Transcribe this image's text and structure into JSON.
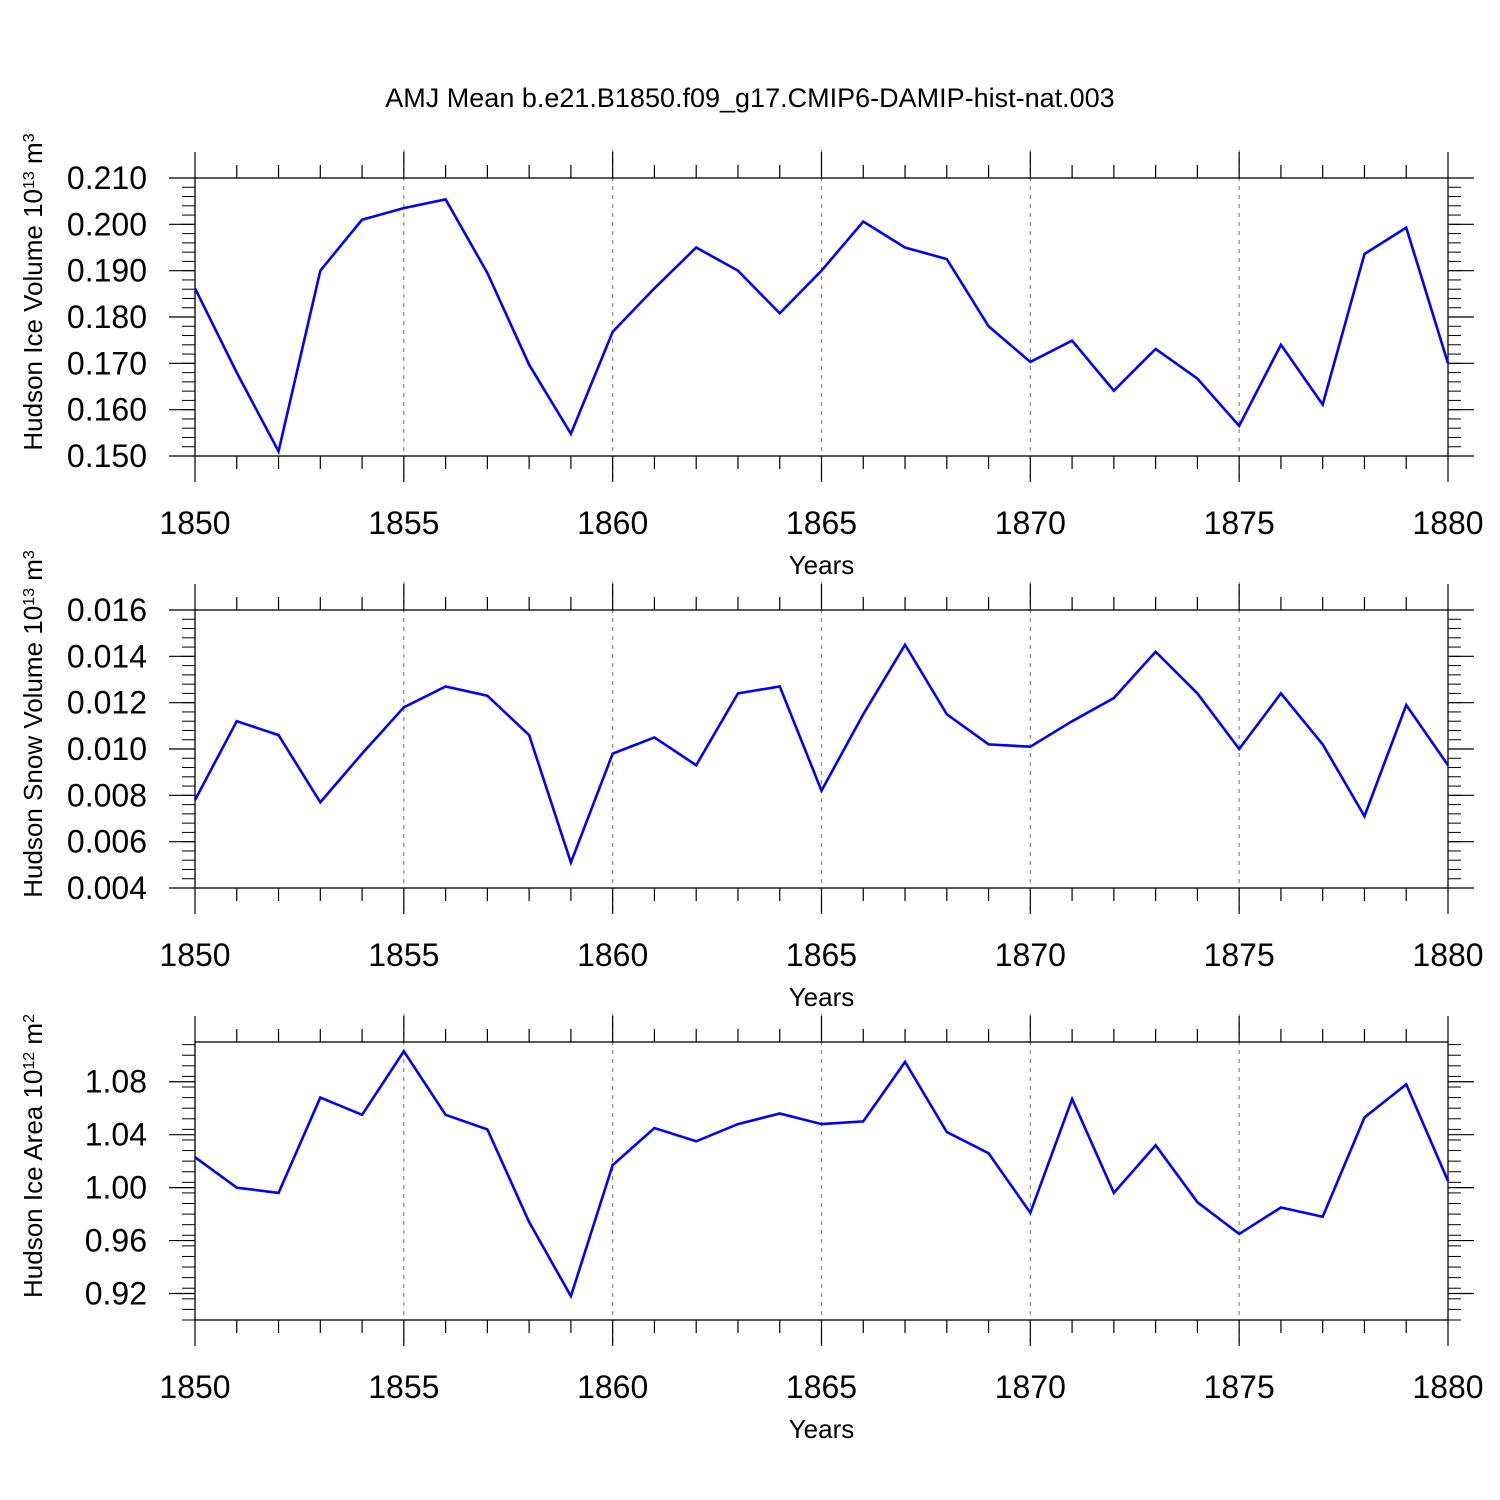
{
  "title": "AMJ Mean b.e21.B1850.f09_g17.CMIP6-DAMIP-hist-nat.003",
  "colors": {
    "line": "#0000ff",
    "axis": "#000000",
    "grid": "#888888"
  },
  "chart_data": [
    {
      "type": "line",
      "xlabel": "Years",
      "ylabel": {
        "text": "Hudson Ice Volume 10",
        "exponent": "13",
        "unit": "m",
        "unit_exponent": "3"
      },
      "xlim": [
        1850,
        1880
      ],
      "ylim": [
        0.15,
        0.21
      ],
      "x_ticks": [
        "1850",
        "1855",
        "1860",
        "1865",
        "1870",
        "1875",
        "1880"
      ],
      "y_ticks": [
        "0.150",
        "0.160",
        "0.170",
        "0.180",
        "0.190",
        "0.200",
        "0.210"
      ],
      "x": [
        1850,
        1851,
        1852,
        1853,
        1854,
        1855,
        1856,
        1857,
        1858,
        1859,
        1860,
        1861,
        1862,
        1863,
        1864,
        1865,
        1866,
        1867,
        1868,
        1869,
        1870,
        1871,
        1872,
        1873,
        1874,
        1875,
        1876,
        1877,
        1878,
        1879,
        1880
      ],
      "values": [
        0.1862,
        0.168,
        0.151,
        0.19,
        0.201,
        0.2035,
        0.2054,
        0.1895,
        0.1697,
        0.1548,
        0.1768,
        0.1862,
        0.195,
        0.19,
        0.1808,
        0.19,
        0.2006,
        0.195,
        0.1925,
        0.178,
        0.1703,
        0.1749,
        0.1641,
        0.1731,
        0.1667,
        0.1565,
        0.174,
        0.1611,
        0.1936,
        0.1993,
        0.17
      ]
    },
    {
      "type": "line",
      "xlabel": "Years",
      "ylabel": {
        "text": "Hudson Snow Volume 10",
        "exponent": "13",
        "unit": "m",
        "unit_exponent": "3"
      },
      "xlim": [
        1850,
        1880
      ],
      "ylim": [
        0.004,
        0.016
      ],
      "x_ticks": [
        "1850",
        "1855",
        "1860",
        "1865",
        "1870",
        "1875",
        "1880"
      ],
      "y_ticks": [
        "0.004",
        "0.006",
        "0.008",
        "0.010",
        "0.012",
        "0.014",
        "0.016"
      ],
      "x": [
        1850,
        1851,
        1852,
        1853,
        1854,
        1855,
        1856,
        1857,
        1858,
        1859,
        1860,
        1861,
        1862,
        1863,
        1864,
        1865,
        1866,
        1867,
        1868,
        1869,
        1870,
        1871,
        1872,
        1873,
        1874,
        1875,
        1876,
        1877,
        1878,
        1879,
        1880
      ],
      "values": [
        0.0078,
        0.0112,
        0.0106,
        0.0077,
        0.0098,
        0.0118,
        0.0127,
        0.0123,
        0.0106,
        0.0051,
        0.0098,
        0.0105,
        0.0093,
        0.0124,
        0.0127,
        0.0082,
        0.0115,
        0.0145,
        0.0115,
        0.0102,
        0.0101,
        0.0112,
        0.0122,
        0.0142,
        0.0124,
        0.01,
        0.0124,
        0.0102,
        0.0071,
        0.0119,
        0.0093
      ]
    },
    {
      "type": "line",
      "xlabel": "Years",
      "ylabel": {
        "text": "Hudson Ice Area 10",
        "exponent": "12",
        "unit": "m",
        "unit_exponent": "2"
      },
      "xlim": [
        1850,
        1880
      ],
      "ylim": [
        0.9,
        1.11
      ],
      "x_ticks": [
        "1850",
        "1855",
        "1860",
        "1865",
        "1870",
        "1875",
        "1880"
      ],
      "y_ticks": [
        "0.92",
        "0.96",
        "1.00",
        "1.04",
        "1.08"
      ],
      "x": [
        1850,
        1851,
        1852,
        1853,
        1854,
        1855,
        1856,
        1857,
        1858,
        1859,
        1860,
        1861,
        1862,
        1863,
        1864,
        1865,
        1866,
        1867,
        1868,
        1869,
        1870,
        1871,
        1872,
        1873,
        1874,
        1875,
        1876,
        1877,
        1878,
        1879,
        1880
      ],
      "values": [
        1.023,
        1.0,
        0.996,
        1.068,
        1.055,
        1.103,
        1.055,
        1.044,
        0.974,
        0.918,
        1.017,
        1.045,
        1.035,
        1.048,
        1.056,
        1.048,
        1.05,
        1.095,
        1.042,
        1.026,
        0.981,
        1.067,
        0.996,
        1.032,
        0.989,
        0.965,
        0.985,
        0.978,
        1.053,
        1.078,
        1.005
      ]
    }
  ]
}
